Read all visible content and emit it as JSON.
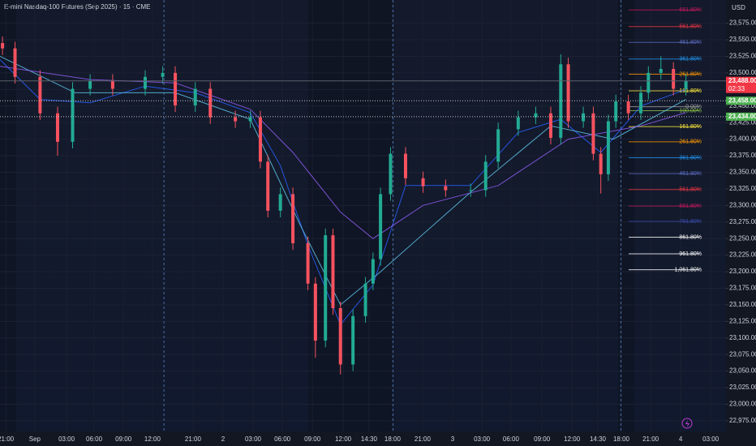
{
  "chart_data": {
    "type": "candlestick",
    "title": "E-mini Nasdaq-100 Futures (Sep 2025) · 15 · CME",
    "currency": "USD",
    "up_color": "#22ab94",
    "down_color": "#f7525f",
    "xlim": [
      0,
      290
    ],
    "ylim": [
      22959,
      23610
    ],
    "x": [
      1,
      6,
      16,
      23,
      29,
      36,
      45,
      58,
      65,
      70,
      78,
      84,
      94,
      100,
      104,
      107,
      112,
      117,
      123,
      126,
      130,
      133,
      136,
      141,
      146,
      149,
      152,
      156,
      162,
      169,
      178,
      188,
      194,
      199,
      207,
      214,
      220,
      224,
      227,
      233,
      237,
      240,
      243,
      246,
      251,
      256,
      259,
      264,
      269,
      274
    ],
    "open": [
      23545,
      23537,
      23494,
      23439,
      23396,
      23476,
      23488,
      23476,
      23494,
      23500,
      23451,
      23476,
      23433,
      23427,
      23433,
      23366,
      23292,
      23317,
      23243,
      23182,
      23096,
      23255,
      23145,
      23060,
      23133,
      23182,
      23219,
      23317,
      23378,
      23341,
      23329,
      23323,
      23323,
      23366,
      23415,
      23433,
      23439,
      23402,
      23513,
      23427,
      23439,
      23378,
      23347,
      23427,
      23457,
      23439,
      23470,
      23500,
      23506,
      23476
    ],
    "high": [
      23555,
      23547,
      23504,
      23449,
      23486,
      23498,
      23498,
      23504,
      23510,
      23510,
      23486,
      23486,
      23443,
      23443,
      23443,
      23376,
      23327,
      23327,
      23253,
      23192,
      23265,
      23265,
      23155,
      23143,
      23192,
      23229,
      23327,
      23388,
      23388,
      23351,
      23339,
      23333,
      23376,
      23425,
      23443,
      23449,
      23449,
      23528,
      23523,
      23449,
      23449,
      23388,
      23437,
      23467,
      23467,
      23480,
      23510,
      23525,
      23516,
      23498
    ],
    "low": [
      23527,
      23484,
      23429,
      23375,
      23386,
      23466,
      23466,
      23466,
      23484,
      23441,
      23441,
      23423,
      23417,
      23417,
      23356,
      23282,
      23282,
      23233,
      23172,
      23070,
      23086,
      23135,
      23045,
      23050,
      23123,
      23172,
      23209,
      23307,
      23331,
      23319,
      23313,
      23313,
      23313,
      23356,
      23405,
      23423,
      23392,
      23392,
      23417,
      23417,
      23368,
      23318,
      23337,
      23417,
      23429,
      23429,
      23460,
      23490,
      23466,
      23466
    ],
    "close": [
      23537,
      23494,
      23439,
      23396,
      23476,
      23488,
      23476,
      23494,
      23500,
      23451,
      23476,
      23433,
      23427,
      23433,
      23366,
      23292,
      23317,
      23243,
      23182,
      23096,
      23255,
      23145,
      23060,
      23133,
      23182,
      23219,
      23317,
      23378,
      23341,
      23329,
      23323,
      23323,
      23366,
      23415,
      23433,
      23439,
      23402,
      23513,
      23427,
      23439,
      23378,
      23347,
      23427,
      23457,
      23439,
      23470,
      23500,
      23506,
      23476,
      23488
    ],
    "overlays": [
      {
        "color": "#2962ff",
        "x": [
          0,
          16,
          36,
          58,
          78,
          100,
          112,
          123,
          136,
          149,
          162,
          188,
          207,
          224,
          240,
          256,
          274
        ],
        "values": [
          23520,
          23460,
          23455,
          23480,
          23470,
          23440,
          23360,
          23240,
          23120,
          23180,
          23330,
          23330,
          23410,
          23430,
          23380,
          23450,
          23475
        ]
      },
      {
        "color": "#5ec3e8",
        "x": [
          0,
          30,
          70,
          100,
          120,
          136,
          152,
          188,
          220,
          245,
          274
        ],
        "values": [
          23525,
          23470,
          23470,
          23430,
          23270,
          23150,
          23200,
          23320,
          23420,
          23400,
          23460
        ]
      },
      {
        "color": "#8e5cf0",
        "x": [
          0,
          36,
          70,
          100,
          117,
          136,
          149,
          169,
          199,
          227,
          256,
          274
        ],
        "values": [
          23510,
          23490,
          23485,
          23445,
          23380,
          23290,
          23250,
          23300,
          23330,
          23400,
          23420,
          23440
        ]
      }
    ],
    "fib_levels": [
      {
        "label": "661.80%",
        "value": 23595,
        "color": "#c2185b"
      },
      {
        "label": "561.80%",
        "value": 23570,
        "color": "#f23645"
      },
      {
        "label": "461.80%",
        "value": 23546,
        "color": "#5c6bc0"
      },
      {
        "label": "361.80%",
        "value": 23521,
        "color": "#2196f3"
      },
      {
        "label": "261.80%",
        "value": 23498,
        "color": "#ff9800"
      },
      {
        "label": "161.80%",
        "value": 23473,
        "color": "#ffeb3b"
      },
      {
        "label": "0.00%",
        "value": 23449,
        "color": "#9e9e9e"
      },
      {
        "label": "100.00%",
        "value": 23443,
        "color": "#8bc34a"
      },
      {
        "label": "161.80%",
        "value": 23419,
        "color": "#ffeb3b"
      },
      {
        "label": "261.80%",
        "value": 23396,
        "color": "#ff9800"
      },
      {
        "label": "361.80%",
        "value": 23372,
        "color": "#2196f3"
      },
      {
        "label": "461.80%",
        "value": 23348,
        "color": "#5c6bc0"
      },
      {
        "label": "561.80%",
        "value": 23324,
        "color": "#f23645"
      },
      {
        "label": "661.80%",
        "value": 23299,
        "color": "#c2185b"
      },
      {
        "label": "761.80%",
        "value": 23276,
        "color": "#3949ab"
      },
      {
        "label": "861.80%",
        "value": 23252,
        "color": "#ffffff"
      },
      {
        "label": "961.80%",
        "value": 23227,
        "color": "#ffffff"
      },
      {
        "label": "1,061.80%",
        "value": 23203,
        "color": "#ffffff"
      }
    ],
    "price_lines": [
      {
        "value": 23488,
        "label": "23,488.00",
        "color": "#f23645"
      },
      {
        "value": 23458,
        "label": "23,458.00",
        "color": "#4caf50"
      },
      {
        "value": 23434,
        "label": "23,434.00",
        "color": "#4caf50"
      }
    ],
    "countdown": "02:33",
    "session_lines": [
      65.5,
      157,
      248
    ],
    "yticks": [
      {
        "value": 23575,
        "label": "23,575.00"
      },
      {
        "value": 23550,
        "label": "23,550.00"
      },
      {
        "value": 23525,
        "label": "23,525.00"
      },
      {
        "value": 23500,
        "label": "23,500.00"
      },
      {
        "value": 23475,
        "label": "23,475.00"
      },
      {
        "value": 23450,
        "label": "23,450.00"
      },
      {
        "value": 23425,
        "label": "23,425.00"
      },
      {
        "value": 23400,
        "label": "23,400.00"
      },
      {
        "value": 23375,
        "label": "23,375.00"
      },
      {
        "value": 23350,
        "label": "23,350.00"
      },
      {
        "value": 23325,
        "label": "23,325.00"
      },
      {
        "value": 23300,
        "label": "23,300.00"
      },
      {
        "value": 23275,
        "label": "23,275.00"
      },
      {
        "value": 23250,
        "label": "23,250.00"
      },
      {
        "value": 23225,
        "label": "23,225.00"
      },
      {
        "value": 23200,
        "label": "23,200.00"
      },
      {
        "value": 23175,
        "label": "23,175.00"
      },
      {
        "value": 23150,
        "label": "23,150.00"
      },
      {
        "value": 23125,
        "label": "23,125.00"
      },
      {
        "value": 23100,
        "label": "23,100.00"
      },
      {
        "value": 23075,
        "label": "23,075.00"
      },
      {
        "value": 23050,
        "label": "23,050.00"
      },
      {
        "value": 23025,
        "label": "23,025.00"
      },
      {
        "value": 23000,
        "label": "23,000.00"
      },
      {
        "value": 22975,
        "label": "22,975.00"
      }
    ],
    "xticks": [
      {
        "value": 2.3,
        "label": "21:00"
      },
      {
        "value": 13.9,
        "label": "Sep"
      },
      {
        "value": 26.6,
        "label": "03:00"
      },
      {
        "value": 37.6,
        "label": "06:00"
      },
      {
        "value": 49.3,
        "label": "09:00"
      },
      {
        "value": 60.9,
        "label": "12:00"
      },
      {
        "value": 77.1,
        "label": "21:00"
      },
      {
        "value": 89.1,
        "label": "2"
      },
      {
        "value": 101.1,
        "label": "03:00"
      },
      {
        "value": 112.8,
        "label": "06:00"
      },
      {
        "value": 124.8,
        "label": "09:00"
      },
      {
        "value": 137.1,
        "label": "12:00"
      },
      {
        "value": 147.4,
        "label": "14:30"
      },
      {
        "value": 156.8,
        "label": "18:00"
      },
      {
        "value": 168.8,
        "label": "21:00"
      },
      {
        "value": 180.8,
        "label": "3"
      },
      {
        "value": 192.5,
        "label": "03:00"
      },
      {
        "value": 204.1,
        "label": "06:00"
      },
      {
        "value": 216.5,
        "label": "09:00"
      },
      {
        "value": 228.5,
        "label": "12:00"
      },
      {
        "value": 238.8,
        "label": "14:30"
      },
      {
        "value": 248.2,
        "label": "18:00"
      },
      {
        "value": 259.9,
        "label": "21:00"
      },
      {
        "value": 271.9,
        "label": "4"
      },
      {
        "value": 283.9,
        "label": "03:00"
      }
    ]
  }
}
